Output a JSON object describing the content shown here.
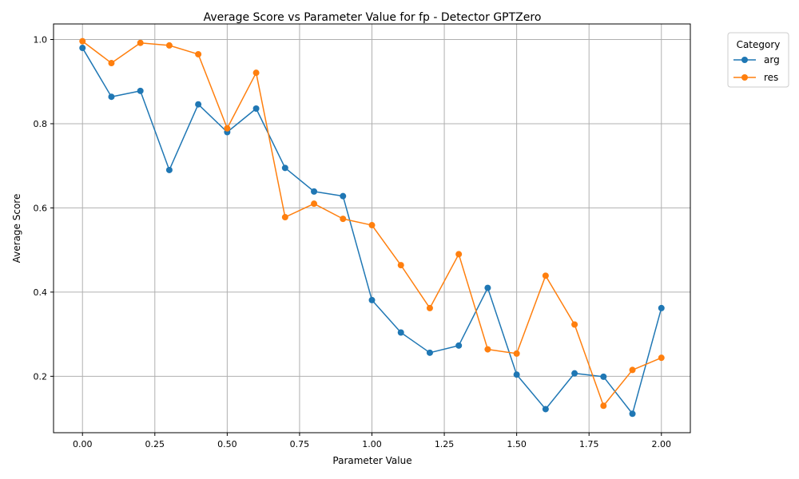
{
  "chart_data": {
    "type": "line",
    "title": "Average Score vs Parameter Value for fp - Detector GPTZero",
    "xlabel": "Parameter Value",
    "ylabel": "Average Score",
    "xlim": [
      -0.1,
      2.1
    ],
    "ylim": [
      0.066,
      1.037
    ],
    "x_ticks": [
      0.0,
      0.25,
      0.5,
      0.75,
      1.0,
      1.25,
      1.5,
      1.75,
      2.0
    ],
    "x_tick_labels": [
      "0.00",
      "0.25",
      "0.50",
      "0.75",
      "1.00",
      "1.25",
      "1.50",
      "1.75",
      "2.00"
    ],
    "y_ticks": [
      0.2,
      0.4,
      0.6,
      0.8,
      1.0
    ],
    "y_tick_labels": [
      "0.2",
      "0.4",
      "0.6",
      "0.8",
      "1.0"
    ],
    "grid": true,
    "legend": {
      "title": "Category",
      "placement": "outside-top-right"
    },
    "x": [
      0.0,
      0.1,
      0.2,
      0.3,
      0.4,
      0.5,
      0.6,
      0.7,
      0.8,
      0.9,
      1.0,
      1.1,
      1.2,
      1.3,
      1.4,
      1.5,
      1.6,
      1.7,
      1.8,
      1.9,
      2.0
    ],
    "series": [
      {
        "name": "arg",
        "color": "#1f77b4",
        "values": [
          0.98,
          0.864,
          0.878,
          0.69,
          0.846,
          0.78,
          0.836,
          0.695,
          0.639,
          0.628,
          0.381,
          0.304,
          0.256,
          0.273,
          0.41,
          0.204,
          0.122,
          0.207,
          0.199,
          0.111,
          0.362
        ]
      },
      {
        "name": "res",
        "color": "#ff7f0e",
        "values": [
          0.996,
          0.944,
          0.992,
          0.986,
          0.965,
          0.789,
          0.921,
          0.578,
          0.61,
          0.574,
          0.559,
          0.464,
          0.362,
          0.49,
          0.264,
          0.254,
          0.439,
          0.323,
          0.13,
          0.215,
          0.244
        ]
      }
    ]
  }
}
